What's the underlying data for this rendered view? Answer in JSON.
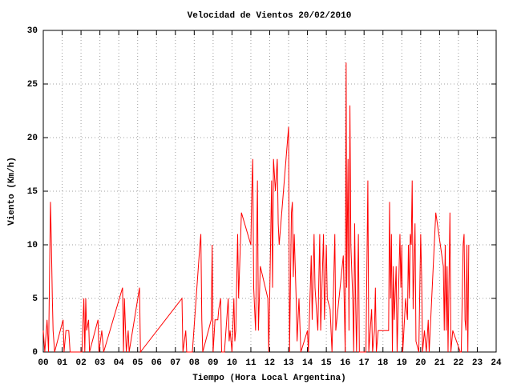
{
  "chart_data": {
    "type": "line",
    "title": "Velocidad de Vientos 20/02/2010",
    "xlabel": "Tiempo (Hora Local Argentina)",
    "ylabel": "Viento (Km/h)",
    "grid": true,
    "xlim": [
      0,
      24
    ],
    "ylim": [
      0,
      30
    ],
    "xticks": [
      {
        "value": 0,
        "label": "00"
      },
      {
        "value": 1,
        "label": "01"
      },
      {
        "value": 2,
        "label": "02"
      },
      {
        "value": 3,
        "label": "03"
      },
      {
        "value": 4,
        "label": "04"
      },
      {
        "value": 5,
        "label": "05"
      },
      {
        "value": 6,
        "label": "06"
      },
      {
        "value": 7,
        "label": "07"
      },
      {
        "value": 8,
        "label": "08"
      },
      {
        "value": 9,
        "label": "09"
      },
      10,
      11,
      12,
      13,
      14,
      15,
      16,
      17,
      18,
      19,
      20,
      21,
      22,
      23,
      24
    ],
    "yticks": [
      0,
      5,
      10,
      15,
      20,
      25,
      30
    ],
    "x": [
      0,
      0.08,
      0.2,
      0.28,
      0.38,
      0.42,
      0.48,
      0.52,
      0.6,
      1.05,
      1.1,
      1.2,
      1.35,
      1.42,
      2.05,
      2.15,
      2.2,
      2.25,
      2.3,
      2.4,
      2.45,
      2.9,
      2.95,
      3.1,
      3.2,
      4.2,
      4.25,
      4.3,
      4.4,
      4.5,
      4.55,
      5.1,
      5.15,
      7.35,
      7.4,
      7.55,
      7.6,
      7.9,
      8.3,
      8.35,
      8.4,
      8.45,
      8.9,
      8.95,
      9.0,
      9.1,
      9.25,
      9.3,
      9.4,
      9.45,
      9.6,
      9.8,
      9.85,
      9.9,
      10.0,
      10.1,
      10.15,
      10.2,
      10.3,
      10.35,
      10.5,
      11.0,
      11.05,
      11.1,
      11.15,
      11.25,
      11.35,
      11.4,
      11.5,
      11.9,
      11.95,
      12.1,
      12.15,
      12.2,
      12.3,
      12.4,
      12.45,
      12.5,
      13.0,
      13.05,
      13.15,
      13.2,
      13.25,
      13.3,
      13.4,
      13.45,
      13.55,
      13.65,
      14.0,
      14.05,
      14.2,
      14.25,
      14.35,
      14.4,
      14.55,
      14.65,
      14.7,
      14.85,
      14.9,
      15.0,
      15.05,
      15.2,
      15.3,
      15.45,
      15.5,
      15.9,
      16.0,
      16.05,
      16.08,
      16.15,
      16.2,
      16.25,
      16.3,
      16.4,
      16.45,
      16.5,
      16.55,
      16.6,
      16.7,
      16.75,
      17.1,
      17.2,
      17.25,
      17.4,
      17.45,
      17.55,
      17.6,
      17.65,
      17.75,
      18.3,
      18.35,
      18.4,
      18.45,
      18.5,
      18.55,
      18.6,
      18.7,
      18.75,
      18.9,
      18.95,
      19.0,
      19.05,
      19.2,
      19.3,
      19.35,
      19.4,
      19.45,
      19.5,
      19.55,
      19.6,
      19.7,
      19.75,
      19.9,
      20.0,
      20.05,
      20.1,
      20.2,
      20.3,
      20.4,
      20.45,
      20.8,
      21.2,
      21.25,
      21.3,
      21.35,
      21.4,
      21.45,
      21.55,
      21.6,
      21.7,
      22.1,
      22.15,
      22.25,
      22.3,
      22.35,
      22.4,
      22.45,
      22.5,
      22.55
    ],
    "series": [
      {
        "color": "#ff0000",
        "values": [
          2,
          0,
          3,
          0,
          14,
          11,
          5,
          2,
          0,
          3,
          0,
          2,
          2,
          0,
          0,
          5,
          0,
          5,
          2,
          3,
          0,
          3,
          0,
          2,
          0,
          6,
          0,
          5,
          0,
          2,
          0,
          6,
          0,
          5,
          0,
          2,
          0,
          0,
          10,
          11,
          3,
          0,
          3,
          10,
          0,
          3,
          3,
          4,
          5,
          0,
          0,
          5,
          1,
          2,
          0,
          5,
          1,
          2,
          11,
          5,
          13,
          10,
          15,
          18,
          6,
          2,
          16,
          2,
          8,
          5,
          0,
          16,
          6,
          18,
          15,
          18,
          12,
          10,
          21,
          0,
          13,
          14,
          7,
          11,
          5,
          1,
          5,
          0,
          2,
          0,
          9,
          3,
          11,
          6,
          2,
          11,
          2,
          11,
          3,
          10,
          5,
          4,
          0,
          11,
          2,
          9,
          0,
          27,
          6,
          18,
          2,
          23,
          10,
          5,
          0,
          12,
          5,
          0,
          11,
          0,
          0,
          16,
          0,
          4,
          0,
          2,
          6,
          0,
          2,
          2,
          14,
          5,
          11,
          0,
          8,
          3,
          8,
          0,
          11,
          6,
          10,
          0,
          5,
          3,
          10,
          5,
          11,
          10,
          16,
          4,
          12,
          1,
          0,
          11,
          7,
          0,
          2,
          0,
          3,
          0,
          13,
          8,
          2,
          10,
          2,
          8,
          0,
          13,
          0,
          2,
          0,
          0,
          10,
          11,
          3,
          2,
          10,
          0,
          10
        ]
      }
    ]
  }
}
